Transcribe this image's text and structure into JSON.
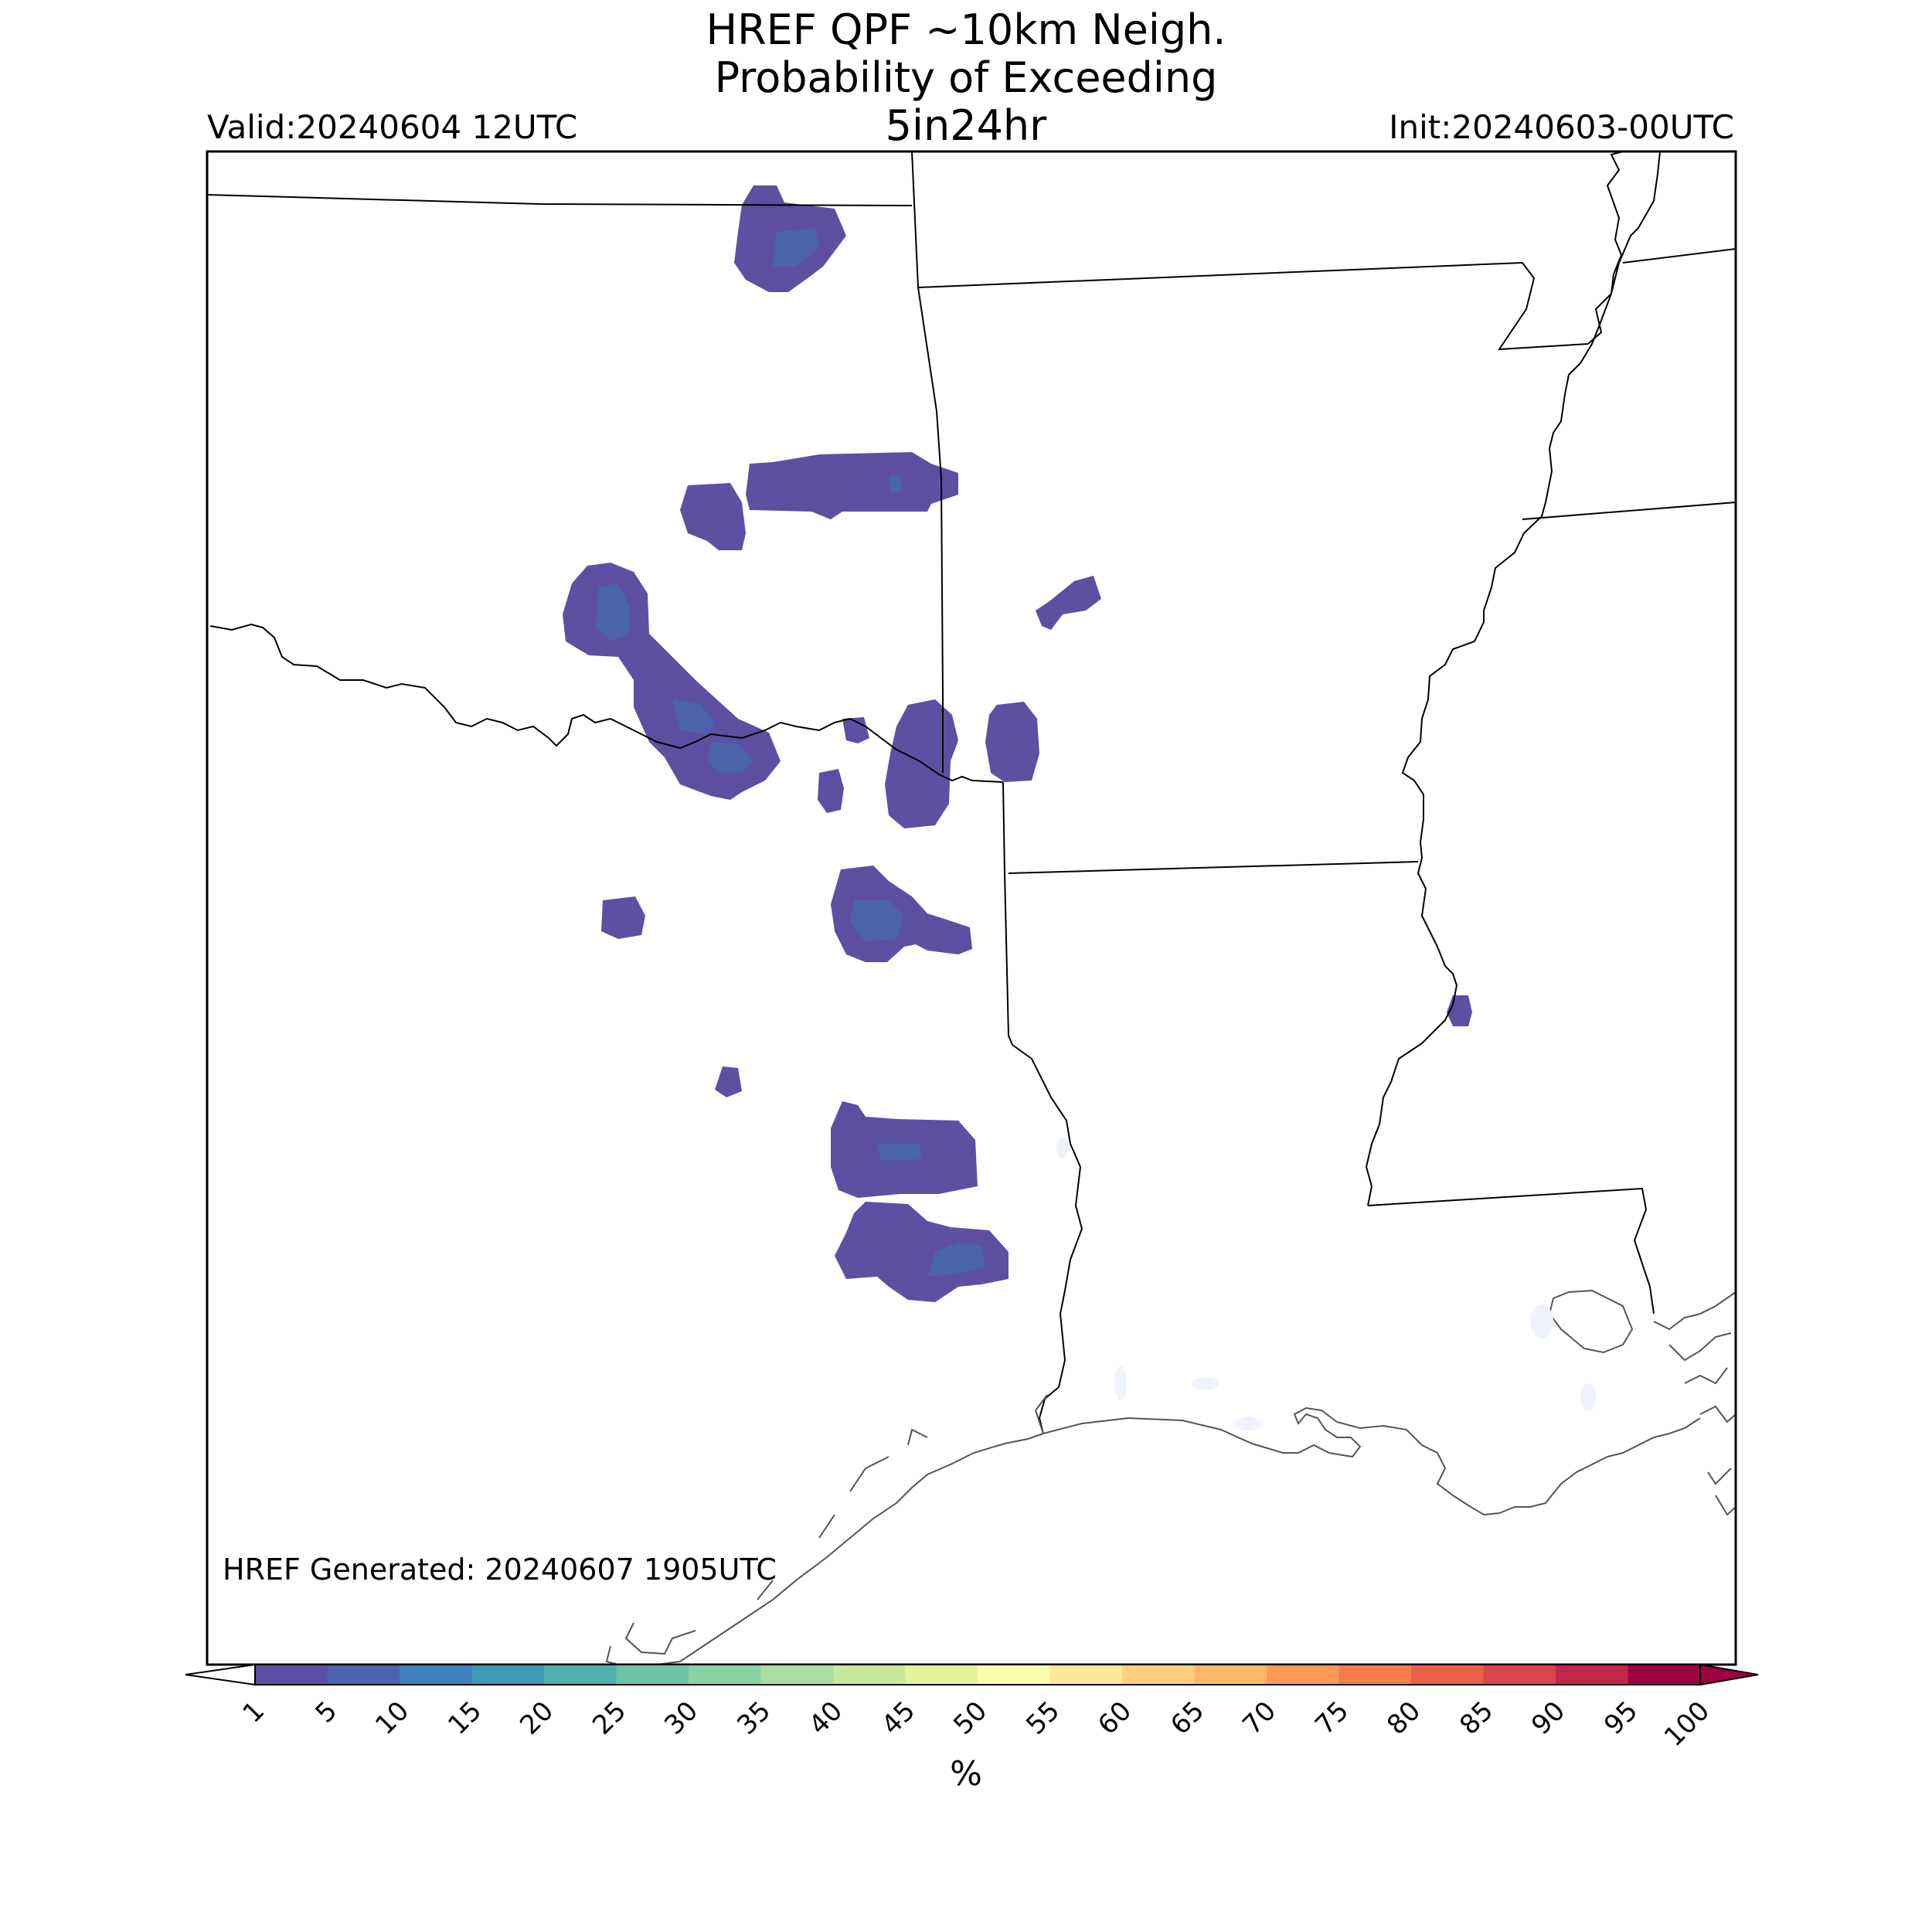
{
  "title": {
    "line1": "HREF QPF ~10km Neigh.",
    "line2": "Probability of Exceeding",
    "line3": "5in24hr"
  },
  "valid_label": "Valid:20240604 12UTC",
  "init_label": "Init:20240603-00UTC",
  "generated_label": "HREF Generated: 20240607 1905UTC",
  "colorbar": {
    "unit": "%",
    "levels": [
      "1",
      "5",
      "10",
      "15",
      "20",
      "25",
      "30",
      "35",
      "40",
      "45",
      "50",
      "55",
      "60",
      "65",
      "70",
      "75",
      "80",
      "85",
      "90",
      "95",
      "100"
    ],
    "colors": [
      "#5e4fa2",
      "#4b64ad",
      "#3f80b9",
      "#3e9bb5",
      "#50b2ad",
      "#6cc4a5",
      "#8ad2a4",
      "#aadda2",
      "#c8e89d",
      "#e5f49b",
      "#f9fbaf",
      "#fee89b",
      "#fed07e",
      "#fdb768",
      "#fb9b57",
      "#f57d4a",
      "#e86249",
      "#d7464b",
      "#c1274b",
      "#9e0142"
    ],
    "under_color": "#ffffff",
    "over_color": "#9e0142"
  },
  "map": {
    "region": "Oklahoma, Texas, Arkansas, Louisiana, Mississippi",
    "outline_color": "#000000",
    "coast_color": "#555555",
    "fill_low": "#5e4fa2",
    "fill_mid": "#4b64ad"
  }
}
